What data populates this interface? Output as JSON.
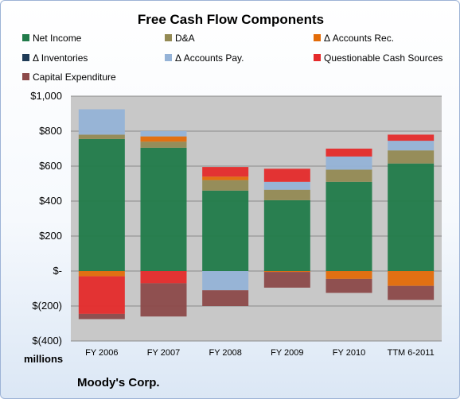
{
  "footer": {
    "units_label": "millions",
    "company": "Moody's Corp."
  },
  "colors": {
    "Net Income": "#217b4a",
    "D&A": "#948a54",
    "Δ Accounts Rec.": "#e36c09",
    "Δ Inventories": "#1f3b57",
    "Δ Accounts Pay.": "#95b3d7",
    "Questionable Cash Sources": "#e52b2b",
    "Capital Expenditure": "#8c4a4a"
  },
  "chart_data": {
    "type": "bar",
    "stacked": true,
    "title": "Free Cash Flow Components",
    "xlabel": "",
    "ylabel": "",
    "categories": [
      "FY 2006",
      "FY 2007",
      "FY 2008",
      "FY 2009",
      "FY 2010",
      "TTM 6-2011"
    ],
    "ylim": [
      -400,
      1000
    ],
    "yticks": [
      1000,
      800,
      600,
      400,
      200,
      0,
      -200,
      -400
    ],
    "ytick_labels": [
      "$1,000",
      "$800",
      "$600",
      "$400",
      "$200",
      "$-",
      "$(200)",
      "$(400)"
    ],
    "grid": true,
    "legend_position": "top",
    "series": [
      {
        "name": "Net Income",
        "values": [
          755,
          705,
          460,
          405,
          510,
          615
        ]
      },
      {
        "name": "D&A",
        "values": [
          25,
          35,
          60,
          60,
          70,
          75
        ]
      },
      {
        "name": "Δ Accounts Rec.",
        "values": [
          -30,
          30,
          20,
          -5,
          -45,
          -85
        ]
      },
      {
        "name": "Δ Inventories",
        "values": [
          0,
          0,
          0,
          0,
          0,
          0
        ]
      },
      {
        "name": "Δ Accounts Pay.",
        "values": [
          145,
          30,
          -110,
          45,
          75,
          55
        ]
      },
      {
        "name": "Questionable Cash Sources",
        "values": [
          -215,
          -70,
          55,
          75,
          45,
          35
        ]
      },
      {
        "name": "Capital Expenditure",
        "values": [
          -30,
          -190,
          -90,
          -90,
          -80,
          -80
        ]
      }
    ]
  }
}
